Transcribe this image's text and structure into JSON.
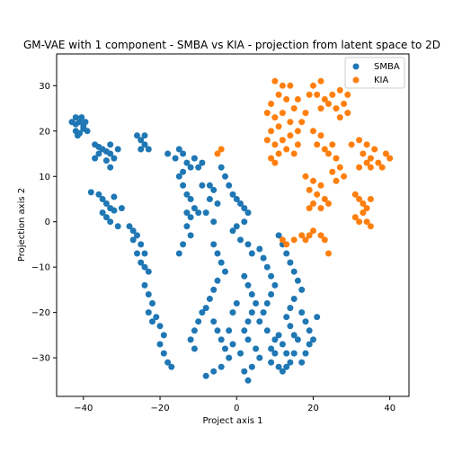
{
  "chart_data": {
    "type": "scatter",
    "title": "GM-VAE with 1 component - SMBA vs KIA - projection from latent space to 2D",
    "xlabel": "Project axis 1",
    "ylabel": "Projection axis 2",
    "xlim": [
      -47,
      45
    ],
    "ylim": [
      -38.5,
      37
    ],
    "xticks": [
      -40,
      -20,
      0,
      20,
      40
    ],
    "yticks": [
      -30,
      -20,
      -10,
      0,
      10,
      20,
      30
    ],
    "grid": false,
    "legend_position": "top-right",
    "series": [
      {
        "name": "SMBA",
        "color": "#1f77b4",
        "points": [
          [
            -43,
            22
          ],
          [
            -42,
            23
          ],
          [
            -41,
            22
          ],
          [
            -40,
            21
          ],
          [
            -42,
            20
          ],
          [
            -41,
            19.5
          ],
          [
            -40,
            20.5
          ],
          [
            -39,
            20
          ],
          [
            -42,
            21.5
          ],
          [
            -40.5,
            23
          ],
          [
            -39.5,
            22
          ],
          [
            -41.5,
            19
          ],
          [
            -37,
            17
          ],
          [
            -36,
            16.5
          ],
          [
            -35,
            16
          ],
          [
            -34,
            15.5
          ],
          [
            -33,
            15
          ],
          [
            -32,
            14
          ],
          [
            -36,
            15
          ],
          [
            -33,
            17
          ],
          [
            -31,
            16
          ],
          [
            -34,
            13.5
          ],
          [
            -37,
            14
          ],
          [
            -33,
            12
          ],
          [
            -38,
            6.5
          ],
          [
            -36,
            6
          ],
          [
            -35,
            5
          ],
          [
            -34,
            4
          ],
          [
            -33,
            3
          ],
          [
            -32,
            2.5
          ],
          [
            -35,
            2
          ],
          [
            -34,
            1
          ],
          [
            -33,
            0
          ],
          [
            -31,
            -1
          ],
          [
            -32,
            5.5
          ],
          [
            -30,
            3
          ],
          [
            -28,
            -1
          ],
          [
            -27,
            -2
          ],
          [
            -26,
            -3
          ],
          [
            -25,
            -5
          ],
          [
            -26,
            -7
          ],
          [
            -25,
            -9
          ],
          [
            -24,
            -10
          ],
          [
            -23,
            -11
          ],
          [
            -27,
            -4
          ],
          [
            -24,
            -7
          ],
          [
            -24,
            -14
          ],
          [
            -23,
            -16
          ],
          [
            -22,
            -18
          ],
          [
            -23,
            -20
          ],
          [
            -22,
            -22
          ],
          [
            -21,
            -21
          ],
          [
            -20,
            -23
          ],
          [
            -19,
            -25
          ],
          [
            -20,
            -27
          ],
          [
            -19,
            -29
          ],
          [
            -18,
            -31
          ],
          [
            -17,
            -32
          ],
          [
            -26,
            19
          ],
          [
            -25,
            18
          ],
          [
            -24,
            17
          ],
          [
            -23,
            16
          ],
          [
            -25,
            16
          ],
          [
            -24,
            19
          ],
          [
            -18,
            15
          ],
          [
            -16,
            14
          ],
          [
            -15,
            16
          ],
          [
            -14,
            15
          ],
          [
            -13,
            13
          ],
          [
            -12,
            12
          ],
          [
            -14,
            11
          ],
          [
            -11,
            14
          ],
          [
            -10,
            12
          ],
          [
            -9,
            13
          ],
          [
            -15,
            10
          ],
          [
            -14,
            8
          ],
          [
            -13,
            6
          ],
          [
            -12,
            5
          ],
          [
            -11,
            3
          ],
          [
            -12,
            1
          ],
          [
            -13,
            -1
          ],
          [
            -12,
            -3
          ],
          [
            -14,
            -5
          ],
          [
            -15,
            -7
          ],
          [
            -13,
            2
          ],
          [
            -10,
            2
          ],
          [
            -9,
            8
          ],
          [
            -7,
            8
          ],
          [
            -6,
            7
          ],
          [
            -7,
            5
          ],
          [
            -5,
            4
          ],
          [
            -8,
            2
          ],
          [
            -6,
            0
          ],
          [
            -4,
            12
          ],
          [
            -3,
            10
          ],
          [
            -2,
            8
          ],
          [
            -1,
            6
          ],
          [
            0,
            5
          ],
          [
            1,
            4
          ],
          [
            2,
            3
          ],
          [
            3,
            2
          ],
          [
            2,
            0
          ],
          [
            0,
            -1
          ],
          [
            -1,
            -2
          ],
          [
            1,
            -4
          ],
          [
            3,
            -5
          ],
          [
            4,
            -7
          ],
          [
            -6,
            -5
          ],
          [
            -5,
            -7
          ],
          [
            -4,
            -9
          ],
          [
            -3,
            -11
          ],
          [
            -5,
            -13
          ],
          [
            -6,
            -15
          ],
          [
            -7,
            -17
          ],
          [
            -8,
            -19
          ],
          [
            -9,
            -20
          ],
          [
            -10,
            -22
          ],
          [
            -11,
            -24
          ],
          [
            -12,
            -26
          ],
          [
            -11,
            -28
          ],
          [
            -6,
            -22
          ],
          [
            -5,
            -24
          ],
          [
            -4,
            -26
          ],
          [
            -3,
            -28
          ],
          [
            -2,
            -30
          ],
          [
            -4,
            -32
          ],
          [
            -6,
            -33
          ],
          [
            -8,
            -34
          ],
          [
            -1,
            -27
          ],
          [
            -2,
            -24
          ],
          [
            -1,
            -20
          ],
          [
            0,
            -18
          ],
          [
            2,
            -12
          ],
          [
            3,
            -14
          ],
          [
            4,
            -16
          ],
          [
            5,
            -18
          ],
          [
            4,
            -20
          ],
          [
            3,
            -22
          ],
          [
            2,
            -24
          ],
          [
            3,
            -26
          ],
          [
            5,
            -28
          ],
          [
            6,
            -30
          ],
          [
            4,
            -32
          ],
          [
            2,
            -33
          ],
          [
            3,
            -35
          ],
          [
            1,
            -29
          ],
          [
            6,
            -6
          ],
          [
            7,
            -8
          ],
          [
            8,
            -10
          ],
          [
            9,
            -12
          ],
          [
            10,
            -14
          ],
          [
            9,
            -16
          ],
          [
            8,
            -18
          ],
          [
            7,
            -20
          ],
          [
            6,
            -22
          ],
          [
            8,
            -24
          ],
          [
            11,
            -3
          ],
          [
            12,
            -5
          ],
          [
            13,
            -7
          ],
          [
            14,
            -9
          ],
          [
            15,
            -11
          ],
          [
            16,
            -13
          ],
          [
            17,
            -15
          ],
          [
            15,
            -17
          ],
          [
            14,
            -19
          ],
          [
            13,
            -21
          ],
          [
            17,
            -20
          ],
          [
            18,
            -22
          ],
          [
            19,
            -24
          ],
          [
            20,
            -26
          ],
          [
            21,
            -21
          ],
          [
            19,
            -27
          ],
          [
            18,
            -29
          ],
          [
            17,
            -31
          ],
          [
            15,
            -29
          ],
          [
            14,
            -31
          ],
          [
            12,
            -33
          ],
          [
            9,
            -28
          ],
          [
            9,
            -31
          ],
          [
            11,
            -25
          ],
          [
            12,
            -27
          ],
          [
            13,
            -29
          ],
          [
            10,
            -29
          ],
          [
            11,
            -32
          ],
          [
            13,
            -32
          ],
          [
            16,
            -26
          ],
          [
            10,
            -26
          ],
          [
            15,
            -25
          ],
          [
            14,
            -23
          ]
        ]
      },
      {
        "name": "KIA",
        "color": "#ff7f0e",
        "points": [
          [
            10,
            31
          ],
          [
            12,
            30
          ],
          [
            14,
            30
          ],
          [
            11,
            28
          ],
          [
            13,
            27
          ],
          [
            9,
            26
          ],
          [
            8,
            24
          ],
          [
            10,
            23
          ],
          [
            12,
            24
          ],
          [
            15,
            25
          ],
          [
            14,
            22
          ],
          [
            11,
            21
          ],
          [
            9,
            20
          ],
          [
            8,
            18
          ],
          [
            10,
            17
          ],
          [
            12,
            18
          ],
          [
            14,
            19
          ],
          [
            16,
            20
          ],
          [
            17,
            22
          ],
          [
            18,
            24
          ],
          [
            16,
            27
          ],
          [
            19,
            28
          ],
          [
            20,
            30
          ],
          [
            22,
            31
          ],
          [
            21,
            28
          ],
          [
            23,
            27
          ],
          [
            25,
            28
          ],
          [
            27,
            29
          ],
          [
            29,
            28
          ],
          [
            28,
            26
          ],
          [
            26,
            25
          ],
          [
            27,
            23
          ],
          [
            29,
            24
          ],
          [
            24,
            26
          ],
          [
            22,
            25
          ],
          [
            15,
            15
          ],
          [
            13,
            16
          ],
          [
            16,
            17
          ],
          [
            11,
            15
          ],
          [
            9,
            14
          ],
          [
            10,
            13
          ],
          [
            20,
            20
          ],
          [
            22,
            19
          ],
          [
            21,
            17
          ],
          [
            23,
            16
          ],
          [
            25,
            17
          ],
          [
            24,
            15
          ],
          [
            26,
            14
          ],
          [
            27,
            12
          ],
          [
            25,
            11
          ],
          [
            26,
            9
          ],
          [
            28,
            10
          ],
          [
            30,
            17
          ],
          [
            32,
            18
          ],
          [
            34,
            17
          ],
          [
            33,
            15
          ],
          [
            35,
            14
          ],
          [
            36,
            16
          ],
          [
            37,
            13
          ],
          [
            38,
            12
          ],
          [
            39,
            15
          ],
          [
            40,
            14
          ],
          [
            34,
            13
          ],
          [
            32,
            12
          ],
          [
            35,
            12
          ],
          [
            18,
            10
          ],
          [
            20,
            9
          ],
          [
            22,
            8
          ],
          [
            19,
            7
          ],
          [
            21,
            6
          ],
          [
            23,
            5
          ],
          [
            20,
            4
          ],
          [
            22,
            3
          ],
          [
            24,
            4
          ],
          [
            19,
            3
          ],
          [
            31,
            6
          ],
          [
            32,
            5
          ],
          [
            33,
            4
          ],
          [
            34,
            3
          ],
          [
            35,
            5
          ],
          [
            33,
            2
          ],
          [
            31,
            1
          ],
          [
            32,
            0
          ],
          [
            34,
            0
          ],
          [
            35,
            -1
          ],
          [
            -5,
            15
          ],
          [
            -4,
            16
          ],
          [
            12,
            -4
          ],
          [
            13,
            -5
          ],
          [
            15,
            -4
          ],
          [
            17,
            -3
          ],
          [
            18,
            -4
          ],
          [
            19,
            -3
          ],
          [
            20,
            -2
          ],
          [
            22,
            -3
          ],
          [
            23,
            -4
          ],
          [
            24,
            -7
          ]
        ]
      }
    ]
  }
}
